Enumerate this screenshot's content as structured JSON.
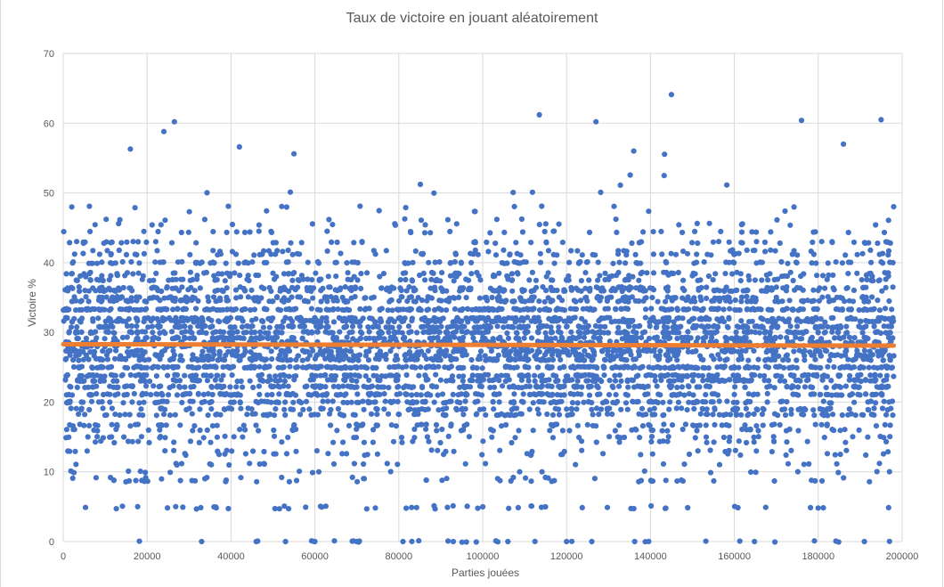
{
  "colors": {
    "points": "#4472C4",
    "trend": "#ED7D31",
    "grid": "#D9D9D9",
    "text": "#595959"
  },
  "chart_data": {
    "type": "scatter",
    "title": "Taux de victoire en jouant aléatoirement",
    "xlabel": "Parties jouées",
    "ylabel": "Victoire %",
    "xlim": [
      0,
      200000
    ],
    "ylim": [
      0,
      70
    ],
    "x_ticks": [
      "0",
      "20000",
      "40000",
      "60000",
      "80000",
      "100000",
      "120000",
      "140000",
      "160000",
      "180000",
      "200000"
    ],
    "y_ticks": [
      "0",
      "10",
      "20",
      "30",
      "40",
      "50",
      "60",
      "70"
    ],
    "grid": true,
    "legend": "none",
    "series": [
      {
        "kind": "scatter",
        "color": "#4472C4",
        "x_range": [
          0,
          198000
        ],
        "y_levels": [
          0,
          4.8,
          5,
          8.7,
          9.1,
          10,
          11.1,
          12.5,
          13,
          14.3,
          15,
          16,
          16.7,
          18.2,
          19,
          20,
          21.1,
          22.2,
          23.1,
          23.8,
          25,
          26.1,
          26.7,
          27.3,
          28,
          28.6,
          29.2,
          30,
          30.8,
          31.6,
          32,
          33.3,
          34.5,
          35,
          36,
          36.4,
          37.5,
          38.1,
          38.5,
          40,
          41.2,
          41.7,
          42.9,
          44.4,
          45.5,
          46.2,
          47.4,
          48,
          50,
          51.2,
          52.6,
          53.8,
          55.6,
          57.1
        ],
        "approx_point_count": 5200,
        "notable_points": [
          {
            "x": 26500,
            "y": 60.2
          },
          {
            "x": 24000,
            "y": 58.8
          },
          {
            "x": 16000,
            "y": 56.3
          },
          {
            "x": 42000,
            "y": 56.6
          },
          {
            "x": 55000,
            "y": 55.6
          },
          {
            "x": 113500,
            "y": 61.2
          },
          {
            "x": 127000,
            "y": 60.2
          },
          {
            "x": 145000,
            "y": 64.1
          },
          {
            "x": 176000,
            "y": 60.4
          },
          {
            "x": 195000,
            "y": 60.5
          },
          {
            "x": 136000,
            "y": 56.0
          },
          {
            "x": 186000,
            "y": 57.0
          },
          {
            "x": 33000,
            "y": 0
          },
          {
            "x": 46000,
            "y": 0
          },
          {
            "x": 53000,
            "y": 0
          },
          {
            "x": 60000,
            "y": 0
          },
          {
            "x": 70000,
            "y": 0
          },
          {
            "x": 81000,
            "y": 0
          },
          {
            "x": 93000,
            "y": 0
          },
          {
            "x": 106000,
            "y": 0
          },
          {
            "x": 120000,
            "y": 0
          },
          {
            "x": 126000,
            "y": 0
          },
          {
            "x": 191000,
            "y": 0
          }
        ]
      },
      {
        "kind": "trendline",
        "color": "#ED7D31",
        "x": [
          0,
          198000
        ],
        "y": [
          28.3,
          28.1
        ]
      }
    ]
  }
}
